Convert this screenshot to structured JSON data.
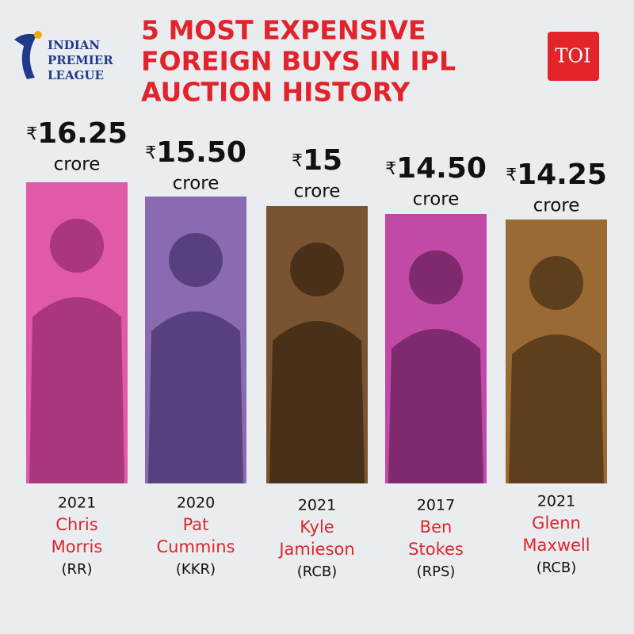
{
  "header": {
    "logo": [
      "INDIAN",
      "PREMIER",
      "LEAGUE"
    ],
    "title": [
      "5 MOST EXPENSIVE",
      "FOREIGN BUYS IN IPL",
      "AUCTION HISTORY"
    ],
    "badge": "TOI"
  },
  "players": [
    {
      "currency": "₹",
      "amount": "16.25",
      "unit": "crore",
      "year": "2021",
      "name": [
        "Chris",
        "Morris"
      ],
      "team": "(RR)"
    },
    {
      "currency": "₹",
      "amount": "15.50",
      "unit": "crore",
      "year": "2020",
      "name": [
        "Pat",
        "Cummins"
      ],
      "team": "(KKR)"
    },
    {
      "currency": "₹",
      "amount": "15",
      "unit": "crore",
      "year": "2021",
      "name": [
        "Kyle",
        "Jamieson"
      ],
      "team": "(RCB)"
    },
    {
      "currency": "₹",
      "amount": "14.50",
      "unit": "crore",
      "year": "2017",
      "name": [
        "Ben",
        "Stokes"
      ],
      "team": "(RPS)"
    },
    {
      "currency": "₹",
      "amount": "14.25",
      "unit": "crore",
      "year": "2021",
      "name": [
        "Glenn",
        "Maxwell"
      ],
      "team": "(RCB)"
    }
  ]
}
